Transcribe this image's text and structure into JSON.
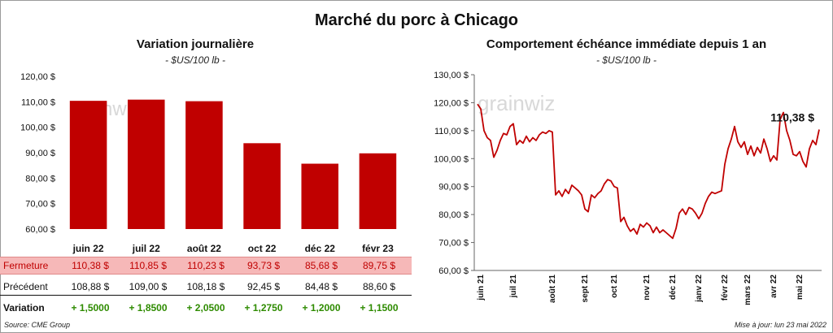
{
  "header": {
    "title": "Marché du porc à Chicago"
  },
  "left_chart": {
    "title": "Variation  journalière",
    "subtitle": "- $US/100 lb -"
  },
  "right_chart": {
    "title": "Comportement  échéance immédiate depuis 1 an",
    "subtitle": "- $US/100 lb -",
    "last_value_label": "110,38 $"
  },
  "watermark": "grainwiz",
  "table": {
    "close_label": "Fermeture",
    "prev_label": "Précédent",
    "var_label": "Variation",
    "close": [
      "110,38  $",
      "110,85  $",
      "110,23  $",
      "93,73  $",
      "85,68  $",
      "89,75  $"
    ],
    "prev": [
      "108,88  $",
      "109,00  $",
      "108,18  $",
      "92,45  $",
      "84,48  $",
      "88,60  $"
    ],
    "variation": [
      "+ 1,5000",
      "+ 1,8500",
      "+ 2,0500",
      "+ 1,2750",
      "+ 1,2000",
      "+ 1,1500"
    ]
  },
  "footer": {
    "source": "Source: CME Group",
    "updated": "Mise à jour: lun 23 mai 2022"
  },
  "colors": {
    "bar": "#c00000",
    "line": "#c00000",
    "positive": "#2e8b00",
    "close_row_bg": "#f6b8b8"
  },
  "chart_data": [
    {
      "type": "bar",
      "categories": [
        "juin 22",
        "juil 22",
        "août 22",
        "oct 22",
        "déc 22",
        "févr 23"
      ],
      "values": [
        110.38,
        110.85,
        110.23,
        93.73,
        85.68,
        89.75
      ],
      "ylim": [
        60,
        120
      ],
      "yticks": [
        60,
        70,
        80,
        90,
        100,
        110,
        120
      ],
      "ytick_labels": [
        "60,00 $",
        "70,00 $",
        "80,00 $",
        "90,00 $",
        "100,00 $",
        "110,00 $",
        "120,00 $"
      ],
      "grid": false
    },
    {
      "type": "line",
      "ylim": [
        60,
        130
      ],
      "yticks": [
        60,
        70,
        80,
        90,
        100,
        110,
        120,
        130
      ],
      "ytick_labels": [
        "60,00 $",
        "70,00 $",
        "80,00 $",
        "90,00 $",
        "100,00 $",
        "110,00 $",
        "120,00 $",
        "130,00 $"
      ],
      "x_labels": [
        "juin 21",
        "juil 21",
        "août 21",
        "sept 21",
        "oct 21",
        "nov 21",
        "déc 21",
        "janv 22",
        "févr 22",
        "mars 22",
        "avr 22",
        "mai 22"
      ],
      "grid": false,
      "series": [
        {
          "points": [
            [
              "juin 21",
              119.5
            ],
            [
              "juin 21",
              117.8
            ],
            [
              "juin 21",
              110.0
            ],
            [
              "juin 21",
              107.5
            ],
            [
              "juin 21",
              106.5
            ],
            [
              "juin 21",
              100.5
            ],
            [
              "juin 21",
              103.0
            ],
            [
              "juin 21",
              106.5
            ],
            [
              "juin 21",
              109.0
            ],
            [
              "juin 21",
              108.5
            ],
            [
              "juil 21",
              111.5
            ],
            [
              "juil 21",
              112.5
            ],
            [
              "juil 21",
              105.0
            ],
            [
              "juil 21",
              106.5
            ],
            [
              "juil 21",
              105.5
            ],
            [
              "juil 21",
              108.0
            ],
            [
              "juil 21",
              106.0
            ],
            [
              "juil 21",
              107.5
            ],
            [
              "juil 21",
              106.5
            ],
            [
              "juil 21",
              108.5
            ],
            [
              "juil 21",
              109.5
            ],
            [
              "juil 21",
              109.0
            ],
            [
              "août 21",
              110.0
            ],
            [
              "août 21",
              109.5
            ],
            [
              "août 21",
              87.0
            ],
            [
              "août 21",
              88.5
            ],
            [
              "août 21",
              86.5
            ],
            [
              "août 21",
              89.0
            ],
            [
              "août 21",
              87.5
            ],
            [
              "août 21",
              90.5
            ],
            [
              "août 21",
              89.5
            ],
            [
              "août 21",
              88.5
            ],
            [
              "sept 21",
              87.0
            ],
            [
              "sept 21",
              82.0
            ],
            [
              "sept 21",
              81.0
            ],
            [
              "sept 21",
              87.0
            ],
            [
              "sept 21",
              86.0
            ],
            [
              "sept 21",
              87.5
            ],
            [
              "sept 21",
              88.5
            ],
            [
              "sept 21",
              91.0
            ],
            [
              "sept 21",
              92.5
            ],
            [
              "oct 21",
              92.0
            ],
            [
              "oct 21",
              90.0
            ],
            [
              "oct 21",
              89.5
            ],
            [
              "oct 21",
              77.5
            ],
            [
              "oct 21",
              79.0
            ],
            [
              "oct 21",
              76.0
            ],
            [
              "oct 21",
              74.0
            ],
            [
              "oct 21",
              75.0
            ],
            [
              "oct 21",
              73.0
            ],
            [
              "oct 21",
              76.5
            ],
            [
              "nov 21",
              75.5
            ],
            [
              "nov 21",
              77.0
            ],
            [
              "nov 21",
              76.0
            ],
            [
              "nov 21",
              73.5
            ],
            [
              "nov 21",
              75.5
            ],
            [
              "nov 21",
              73.5
            ],
            [
              "nov 21",
              74.5
            ],
            [
              "nov 21",
              73.5
            ],
            [
              "déc 21",
              72.5
            ],
            [
              "déc 21",
              71.5
            ],
            [
              "déc 21",
              75.0
            ],
            [
              "déc 21",
              80.5
            ],
            [
              "déc 21",
              82.0
            ],
            [
              "déc 21",
              80.0
            ],
            [
              "déc 21",
              82.5
            ],
            [
              "déc 21",
              82.0
            ],
            [
              "janv 22",
              80.5
            ],
            [
              "janv 22",
              78.5
            ],
            [
              "janv 22",
              80.5
            ],
            [
              "janv 22",
              84.0
            ],
            [
              "janv 22",
              86.5
            ],
            [
              "janv 22",
              88.0
            ],
            [
              "janv 22",
              87.5
            ],
            [
              "janv 22",
              88.0
            ],
            [
              "févr 22",
              88.5
            ],
            [
              "févr 22",
              98.0
            ],
            [
              "févr 22",
              103.5
            ],
            [
              "févr 22",
              107.0
            ],
            [
              "févr 22",
              111.5
            ],
            [
              "févr 22",
              106.0
            ],
            [
              "févr 22",
              104.0
            ],
            [
              "mars 22",
              106.0
            ],
            [
              "mars 22",
              101.5
            ],
            [
              "mars 22",
              104.5
            ],
            [
              "mars 22",
              101.0
            ],
            [
              "mars 22",
              104.0
            ],
            [
              "mars 22",
              102.0
            ],
            [
              "mars 22",
              107.0
            ],
            [
              "mars 22",
              103.5
            ],
            [
              "avr 22",
              99.0
            ],
            [
              "avr 22",
              101.0
            ],
            [
              "avr 22",
              99.5
            ],
            [
              "avr 22",
              114.0
            ],
            [
              "avr 22",
              116.5
            ],
            [
              "avr 22",
              110.0
            ],
            [
              "avr 22",
              106.5
            ],
            [
              "avr 22",
              101.5
            ],
            [
              "mai 22",
              101.0
            ],
            [
              "mai 22",
              102.5
            ],
            [
              "mai 22",
              99.0
            ],
            [
              "mai 22",
              97.0
            ],
            [
              "mai 22",
              103.5
            ],
            [
              "mai 22",
              106.5
            ],
            [
              "mai 22",
              105.0
            ],
            [
              "mai 22",
              110.38
            ]
          ]
        }
      ]
    }
  ]
}
